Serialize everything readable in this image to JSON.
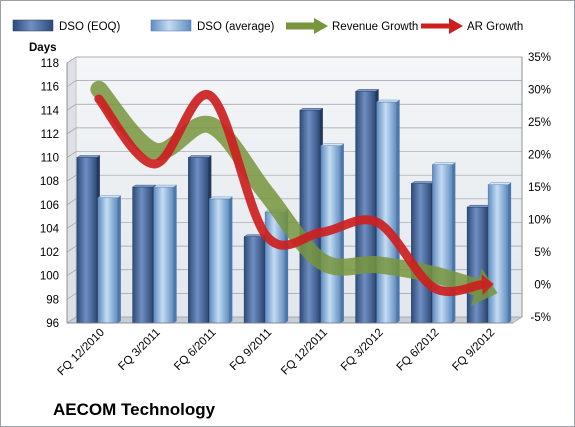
{
  "company": "AECOM Technology",
  "chart_data": {
    "type": "bar",
    "title": "",
    "xlabel": "",
    "ylabel": "Days",
    "ylabel_right": "",
    "categories": [
      "FQ 12/2010",
      "FQ 3/2011",
      "FQ 6/2011",
      "FQ 9/2011",
      "FQ 12/2011",
      "FQ 3/2012",
      "FQ 6/2012",
      "FQ 9/2012"
    ],
    "series": [
      {
        "name": "DSO (EOQ)",
        "kind": "bar",
        "axis": "left",
        "color": "#4a6a9c",
        "values": [
          110.0,
          107.5,
          110.0,
          103.3,
          114.0,
          115.6,
          107.8,
          105.8
        ]
      },
      {
        "name": "DSO (average)",
        "kind": "bar",
        "axis": "left",
        "color": "#8fb4dc",
        "values": [
          106.6,
          107.5,
          106.5,
          105.4,
          111.0,
          114.7,
          109.4,
          107.7
        ]
      },
      {
        "name": "Revenue Growth",
        "kind": "line",
        "axis": "right",
        "color": "#77953d",
        "values": [
          30.5,
          21.0,
          25.0,
          14.5,
          4.0,
          3.5,
          2.0,
          -0.5
        ]
      },
      {
        "name": "AR Growth",
        "kind": "line",
        "axis": "right",
        "color": "#cc1f1f",
        "values": [
          29.0,
          19.0,
          29.5,
          8.0,
          8.5,
          10.0,
          0.0,
          0.5
        ]
      }
    ],
    "ylim": [
      96,
      118
    ],
    "yticks": [
      96,
      98,
      100,
      102,
      104,
      106,
      108,
      110,
      112,
      114,
      116,
      118
    ],
    "ylim_right": [
      -5,
      35
    ],
    "yticks_right": [
      "-5%",
      "0%",
      "5%",
      "10%",
      "15%",
      "20%",
      "25%",
      "30%",
      "35%"
    ],
    "grid": true,
    "legend_position": "top"
  }
}
